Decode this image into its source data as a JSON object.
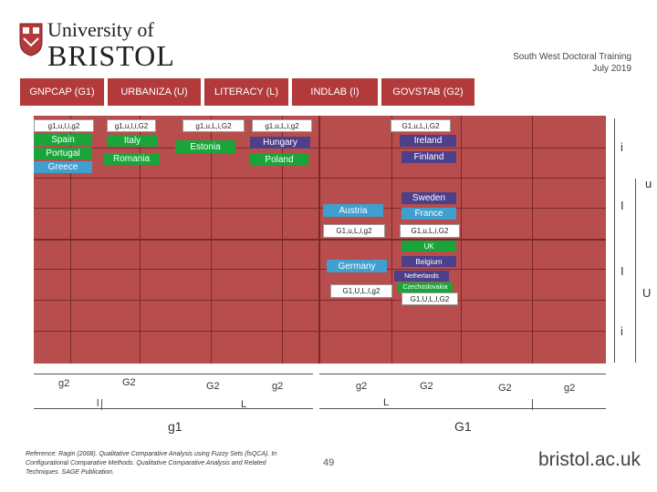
{
  "logo": {
    "line1": "University of",
    "line2": "BRISTOL"
  },
  "header": {
    "line1": "South West Doctoral Training",
    "line2": "July 2019"
  },
  "columns": [
    "GNPCAP (G1)",
    "URBANIZA (U)",
    "LITERACY (L)",
    "INDLAB (I)",
    "GOVSTAB (G2)"
  ],
  "top_row_configs": [
    "g1,u,l,i,g2",
    "g1,u,l,i,G2",
    "g1,u,L,i,G2",
    "g1,u,L,i,g2",
    "G1,u,L,i,G2"
  ],
  "countries": {
    "spain": "Spain",
    "portugal": "Portugal",
    "greece": "Greece",
    "italy": "Italy",
    "romania": "Romania",
    "estonia": "Estonia",
    "hungary": "Hungary",
    "poland": "Poland",
    "ireland": "Ireland",
    "finland": "Finland",
    "austria": "Austria",
    "sweden": "Sweden",
    "france": "France",
    "uk": "UK",
    "germany": "Germany",
    "belgium": "Belgium",
    "netherlands": "Netherlands",
    "czechoslovakia": "Czechoslovakia"
  },
  "mid_configs": {
    "austria": "G1,u,L,i,g2",
    "france": "G1,u,L,i,G2",
    "germany": "G1,U,L,I,g2",
    "czech": "G1,U,L,I,G2"
  },
  "right_labels": [
    "i",
    "u",
    "I",
    "I",
    "U",
    "i"
  ],
  "bottom_labels": [
    "g2",
    "G2",
    "G2",
    "g2",
    "g2",
    "G2",
    "G2",
    "g2"
  ],
  "lower_labels": {
    "l": "l",
    "L1": "L",
    "L2": "L",
    "g1": "g1",
    "G1": "G1"
  },
  "reference": "Reference: Ragin (2008). Qualitative Comparative Analysis using Fuzzy Sets (fsQCA). In Configurational Comparative Methods. Qualitative Comparative Analysis and Related Techniques. SAGE Publication.",
  "page_number": "49",
  "footer_url": "bristol.ac.uk",
  "colors": {
    "main": "#b84d4d",
    "tab": "#b23a3a",
    "green": "#1aa53a",
    "purple": "#4d3f8a",
    "blue": "#3f9fcf"
  }
}
